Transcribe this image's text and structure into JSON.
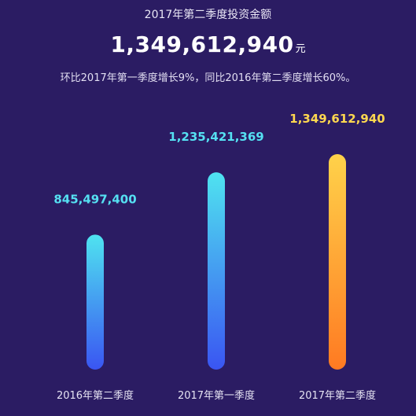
{
  "header": {
    "title": "2017年第二季度投资金额",
    "total": "1,349,612,940",
    "unit": "元",
    "subtitle": "环比2017年第一季度增长9%，同比2016年第二季度增长60%。"
  },
  "colors": {
    "background": "#2b1c63",
    "bar_blue_top": "#4fe3f0",
    "bar_blue_bottom": "#3a55f2",
    "bar_orange_top": "#ffd24a",
    "bar_orange_bottom": "#ff7a22",
    "label_blue": "#55e0f2",
    "label_gold": "#ffd84f"
  },
  "chart_data": {
    "type": "bar",
    "categories": [
      "2016年第二季度",
      "2017年第一季度",
      "2017年第二季度"
    ],
    "values": [
      845497400,
      1235421369,
      1349612940
    ],
    "value_labels": [
      "845,497,400",
      "1,235,421,369",
      "1,349,612,940"
    ],
    "ylim": [
      0,
      1349612940
    ],
    "grid": false,
    "legend": "none"
  }
}
